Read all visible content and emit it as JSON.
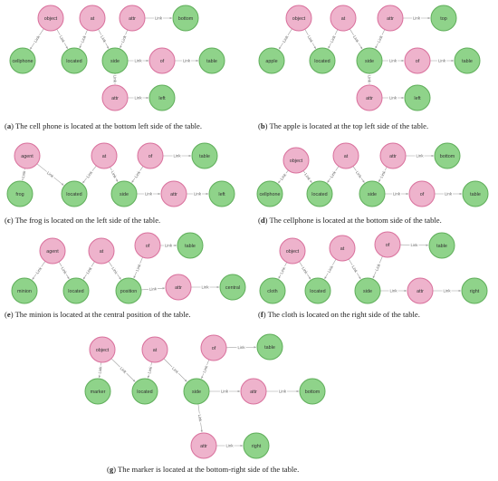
{
  "colors": {
    "pink_fill": "#eeb3cc",
    "pink_stroke": "#d9709c",
    "green_fill": "#8fd38a",
    "green_stroke": "#5fae5a",
    "edge": "#a0a0a0",
    "edge_label": "#666666"
  },
  "edge_label_text": "Link",
  "panels": [
    {
      "letter": "a",
      "text": "The cell phone is located at the bottom left side of the table.",
      "nodes": [
        {
          "id": "object",
          "label": "object",
          "kind": "pink"
        },
        {
          "id": "at",
          "label": "at",
          "kind": "pink"
        },
        {
          "id": "attr1",
          "label": "attr",
          "kind": "pink"
        },
        {
          "id": "bottom",
          "label": "bottom",
          "kind": "green"
        },
        {
          "id": "cellphone",
          "label": "cellphone",
          "kind": "green"
        },
        {
          "id": "located",
          "label": "located",
          "kind": "green"
        },
        {
          "id": "side",
          "label": "side",
          "kind": "green"
        },
        {
          "id": "of",
          "label": "of",
          "kind": "pink"
        },
        {
          "id": "table",
          "label": "table",
          "kind": "green"
        },
        {
          "id": "attr2",
          "label": "attr",
          "kind": "pink"
        },
        {
          "id": "left",
          "label": "left",
          "kind": "green"
        }
      ],
      "edges": [
        [
          "object",
          "cellphone"
        ],
        [
          "object",
          "located"
        ],
        [
          "at",
          "located"
        ],
        [
          "at",
          "side"
        ],
        [
          "attr1",
          "bottom"
        ],
        [
          "attr1",
          "side"
        ],
        [
          "side",
          "of"
        ],
        [
          "of",
          "table"
        ],
        [
          "side",
          "attr2"
        ],
        [
          "attr2",
          "left"
        ]
      ]
    },
    {
      "letter": "b",
      "text": "The apple is located at the top left side of the table.",
      "nodes": [
        {
          "id": "object",
          "label": "object",
          "kind": "pink"
        },
        {
          "id": "at",
          "label": "at",
          "kind": "pink"
        },
        {
          "id": "attr1",
          "label": "attr",
          "kind": "pink"
        },
        {
          "id": "top",
          "label": "top",
          "kind": "green"
        },
        {
          "id": "apple",
          "label": "apple",
          "kind": "green"
        },
        {
          "id": "located",
          "label": "located",
          "kind": "green"
        },
        {
          "id": "side",
          "label": "side",
          "kind": "green"
        },
        {
          "id": "of",
          "label": "of",
          "kind": "pink"
        },
        {
          "id": "table",
          "label": "table",
          "kind": "green"
        },
        {
          "id": "attr2",
          "label": "attr",
          "kind": "pink"
        },
        {
          "id": "left",
          "label": "left",
          "kind": "green"
        }
      ],
      "edges": [
        [
          "object",
          "apple"
        ],
        [
          "object",
          "located"
        ],
        [
          "at",
          "located"
        ],
        [
          "at",
          "side"
        ],
        [
          "attr1",
          "top"
        ],
        [
          "attr1",
          "side"
        ],
        [
          "side",
          "of"
        ],
        [
          "of",
          "table"
        ],
        [
          "side",
          "attr2"
        ],
        [
          "attr2",
          "left"
        ]
      ]
    },
    {
      "letter": "c",
      "text": "The frog is located on the left side of the table.",
      "nodes": [
        {
          "id": "agent",
          "label": "agent",
          "kind": "pink"
        },
        {
          "id": "at",
          "label": "at",
          "kind": "pink"
        },
        {
          "id": "of",
          "label": "of",
          "kind": "pink"
        },
        {
          "id": "table",
          "label": "table",
          "kind": "green"
        },
        {
          "id": "frog",
          "label": "frog",
          "kind": "green"
        },
        {
          "id": "located",
          "label": "located",
          "kind": "green"
        },
        {
          "id": "side",
          "label": "side",
          "kind": "green"
        },
        {
          "id": "attr",
          "label": "attr",
          "kind": "pink"
        },
        {
          "id": "left",
          "label": "left",
          "kind": "green"
        }
      ],
      "edges": [
        [
          "agent",
          "frog"
        ],
        [
          "agent",
          "located"
        ],
        [
          "at",
          "located"
        ],
        [
          "at",
          "side"
        ],
        [
          "of",
          "table"
        ],
        [
          "of",
          "side"
        ],
        [
          "side",
          "attr"
        ],
        [
          "attr",
          "left"
        ]
      ]
    },
    {
      "letter": "d",
      "text": "The cellphone is located at the bottom side of the table.",
      "nodes": [
        {
          "id": "object",
          "label": "object",
          "kind": "pink"
        },
        {
          "id": "at",
          "label": "at",
          "kind": "pink"
        },
        {
          "id": "attr",
          "label": "attr",
          "kind": "pink"
        },
        {
          "id": "bottom",
          "label": "bottom",
          "kind": "green"
        },
        {
          "id": "cellphone",
          "label": "cellphone",
          "kind": "green"
        },
        {
          "id": "located",
          "label": "located",
          "kind": "green"
        },
        {
          "id": "side",
          "label": "side",
          "kind": "green"
        },
        {
          "id": "of",
          "label": "of",
          "kind": "pink"
        },
        {
          "id": "table",
          "label": "table",
          "kind": "green"
        }
      ],
      "edges": [
        [
          "object",
          "cellphone"
        ],
        [
          "object",
          "located"
        ],
        [
          "at",
          "located"
        ],
        [
          "at",
          "side"
        ],
        [
          "attr",
          "bottom"
        ],
        [
          "attr",
          "side"
        ],
        [
          "side",
          "of"
        ],
        [
          "of",
          "table"
        ]
      ]
    },
    {
      "letter": "e",
      "text": "The minion is located at the central position of the table.",
      "nodes": [
        {
          "id": "agent",
          "label": "agent",
          "kind": "pink"
        },
        {
          "id": "at",
          "label": "at",
          "kind": "pink"
        },
        {
          "id": "of",
          "label": "of",
          "kind": "pink"
        },
        {
          "id": "table",
          "label": "table",
          "kind": "green"
        },
        {
          "id": "minion",
          "label": "minion",
          "kind": "green"
        },
        {
          "id": "located",
          "label": "located",
          "kind": "green"
        },
        {
          "id": "position",
          "label": "position",
          "kind": "green"
        },
        {
          "id": "attr",
          "label": "attr",
          "kind": "pink"
        },
        {
          "id": "central",
          "label": "central",
          "kind": "green"
        }
      ],
      "edges": [
        [
          "agent",
          "minion"
        ],
        [
          "agent",
          "located"
        ],
        [
          "at",
          "located"
        ],
        [
          "at",
          "position"
        ],
        [
          "of",
          "table"
        ],
        [
          "of",
          "position"
        ],
        [
          "position",
          "attr"
        ],
        [
          "attr",
          "central"
        ]
      ]
    },
    {
      "letter": "f",
      "text": "The cloth is located on the right side of the table.",
      "nodes": [
        {
          "id": "object",
          "label": "object",
          "kind": "pink"
        },
        {
          "id": "at",
          "label": "at",
          "kind": "pink"
        },
        {
          "id": "of",
          "label": "of",
          "kind": "pink"
        },
        {
          "id": "table",
          "label": "table",
          "kind": "green"
        },
        {
          "id": "cloth",
          "label": "cloth",
          "kind": "green"
        },
        {
          "id": "located",
          "label": "located",
          "kind": "green"
        },
        {
          "id": "side",
          "label": "side",
          "kind": "green"
        },
        {
          "id": "attr",
          "label": "attr",
          "kind": "pink"
        },
        {
          "id": "right",
          "label": "right",
          "kind": "green"
        }
      ],
      "edges": [
        [
          "object",
          "cloth"
        ],
        [
          "object",
          "located"
        ],
        [
          "at",
          "located"
        ],
        [
          "at",
          "side"
        ],
        [
          "of",
          "table"
        ],
        [
          "of",
          "side"
        ],
        [
          "side",
          "attr"
        ],
        [
          "attr",
          "right"
        ]
      ]
    },
    {
      "letter": "g",
      "text": "The marker is located at the bottom-right side of the table.",
      "nodes": [
        {
          "id": "object",
          "label": "object",
          "kind": "pink"
        },
        {
          "id": "at",
          "label": "at",
          "kind": "pink"
        },
        {
          "id": "of",
          "label": "of",
          "kind": "pink"
        },
        {
          "id": "table",
          "label": "table",
          "kind": "green"
        },
        {
          "id": "marker",
          "label": "marker",
          "kind": "green"
        },
        {
          "id": "located",
          "label": "located",
          "kind": "green"
        },
        {
          "id": "side",
          "label": "side",
          "kind": "green"
        },
        {
          "id": "attr1",
          "label": "attr",
          "kind": "pink"
        },
        {
          "id": "bottom",
          "label": "bottom",
          "kind": "green"
        },
        {
          "id": "attr2",
          "label": "attr",
          "kind": "pink"
        },
        {
          "id": "right",
          "label": "right",
          "kind": "green"
        }
      ],
      "edges": [
        [
          "object",
          "marker"
        ],
        [
          "object",
          "located"
        ],
        [
          "at",
          "located"
        ],
        [
          "at",
          "side"
        ],
        [
          "of",
          "table"
        ],
        [
          "of",
          "side"
        ],
        [
          "side",
          "attr1"
        ],
        [
          "attr1",
          "bottom"
        ],
        [
          "side",
          "attr2"
        ],
        [
          "attr2",
          "right"
        ]
      ]
    }
  ]
}
